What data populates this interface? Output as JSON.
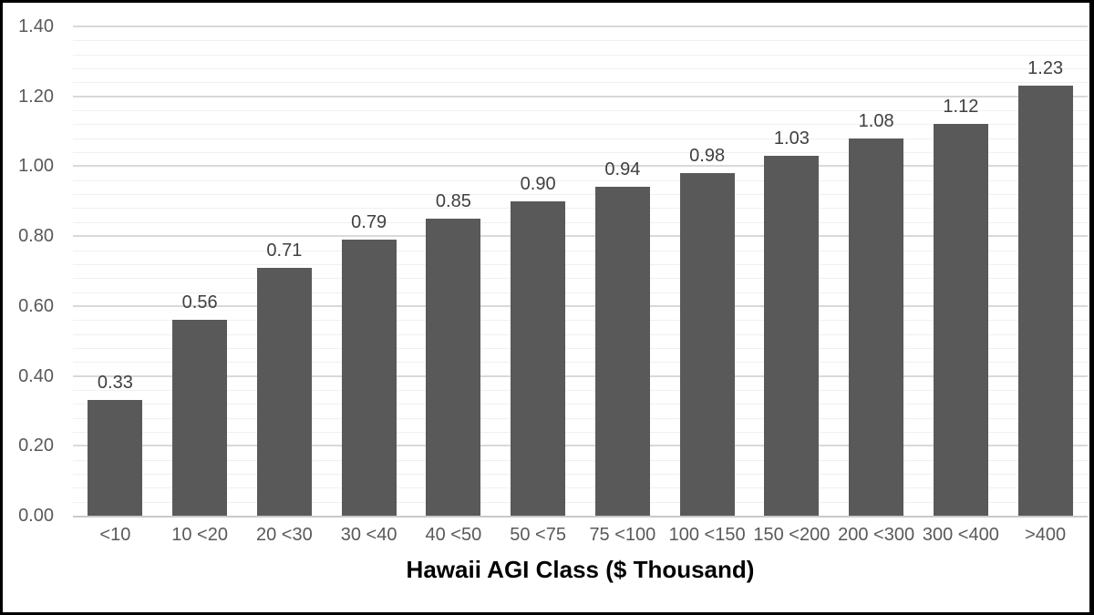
{
  "chart_data": {
    "type": "bar",
    "title": "",
    "xlabel": "Hawaii AGI Class ($ Thousand)",
    "ylabel": "",
    "categories": [
      "<10",
      "10 <20",
      "20 <30",
      "30 <40",
      "40 <50",
      "50 <75",
      "75 <100",
      "100 <150",
      "150 <200",
      "200 <300",
      "300 <400",
      ">400"
    ],
    "values": [
      0.33,
      0.56,
      0.71,
      0.79,
      0.85,
      0.9,
      0.94,
      0.98,
      1.03,
      1.08,
      1.12,
      1.23
    ],
    "value_labels": [
      "0.33",
      "0.56",
      "0.71",
      "0.79",
      "0.85",
      "0.90",
      "0.94",
      "0.98",
      "1.03",
      "1.08",
      "1.12",
      "1.23"
    ],
    "ylim": [
      0,
      1.4
    ],
    "y_major_unit": 0.2,
    "y_minor_unit": 0.04,
    "y_tick_labels": [
      "0.00",
      "0.20",
      "0.40",
      "0.60",
      "0.80",
      "1.00",
      "1.20",
      "1.40"
    ],
    "grid": "horizontal major+minor",
    "legend": "none",
    "colors": {
      "bar": "#595959",
      "major_gridline": "#d9d9d9",
      "minor_gridline": "#f0f0f0",
      "axis_line": "#c9c9c9",
      "tick_text": "#595959",
      "value_text": "#404040",
      "axis_title_text": "#000000",
      "frame_border": "#000000",
      "background": "#ffffff"
    }
  }
}
